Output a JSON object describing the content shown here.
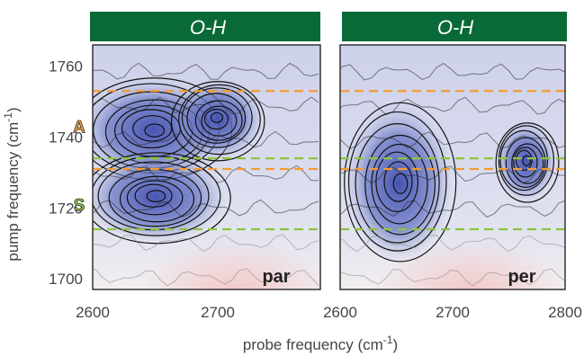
{
  "chart_data": {
    "type": "heatmap",
    "ylabel": "pump frequency (cm",
    "ylabel_sup": "-1",
    "ylabel_close": ")",
    "xlabel": "probe frequency (cm",
    "xlabel_sup": "-1",
    "xlabel_close": ")",
    "ylim": [
      1697,
      1766
    ],
    "y_ticks": [
      "1760",
      "1740",
      "1720",
      "1700"
    ],
    "y_tick_values": [
      1760,
      1740,
      1720,
      1700
    ],
    "markers": [
      {
        "label": "A",
        "y": 1743,
        "color": "#f39c34"
      },
      {
        "label": "S",
        "y": 1721,
        "color": "#8cc540"
      }
    ],
    "panels": [
      {
        "banner": "O-H",
        "corner_label": "par",
        "xlim": [
          2600,
          2782
        ],
        "x_ticks": [
          "2600",
          "2700"
        ],
        "x_tick_values": [
          2600,
          2700
        ],
        "blobs": [
          {
            "cx": 2648,
            "cy": 1742,
            "rx": 40,
            "ry": 9
          },
          {
            "cx": 2650,
            "cy": 1723,
            "rx": 38,
            "ry": 8
          },
          {
            "cx": 2700,
            "cy": 1745,
            "rx": 24,
            "ry": 7
          }
        ]
      },
      {
        "banner": "O-H",
        "corner_label": "per",
        "xlim": [
          2600,
          2800
        ],
        "x_ticks": [
          "2600",
          "2700",
          "2800"
        ],
        "x_tick_values": [
          2600,
          2700,
          2800
        ],
        "blobs": [
          {
            "cx": 2652,
            "cy": 1727,
            "rx": 32,
            "ry": 14
          },
          {
            "cx": 2765,
            "cy": 1733,
            "rx": 18,
            "ry": 7
          }
        ]
      }
    ],
    "orange_lines": [
      1753,
      1731
    ],
    "green_lines": [
      1734,
      1714
    ],
    "colors": {
      "banner": "#0a6a37",
      "negative": "#3e4db0",
      "positive": "#f3c2c2",
      "orange_line": "#f39c34",
      "green_line": "#8cc540"
    }
  }
}
